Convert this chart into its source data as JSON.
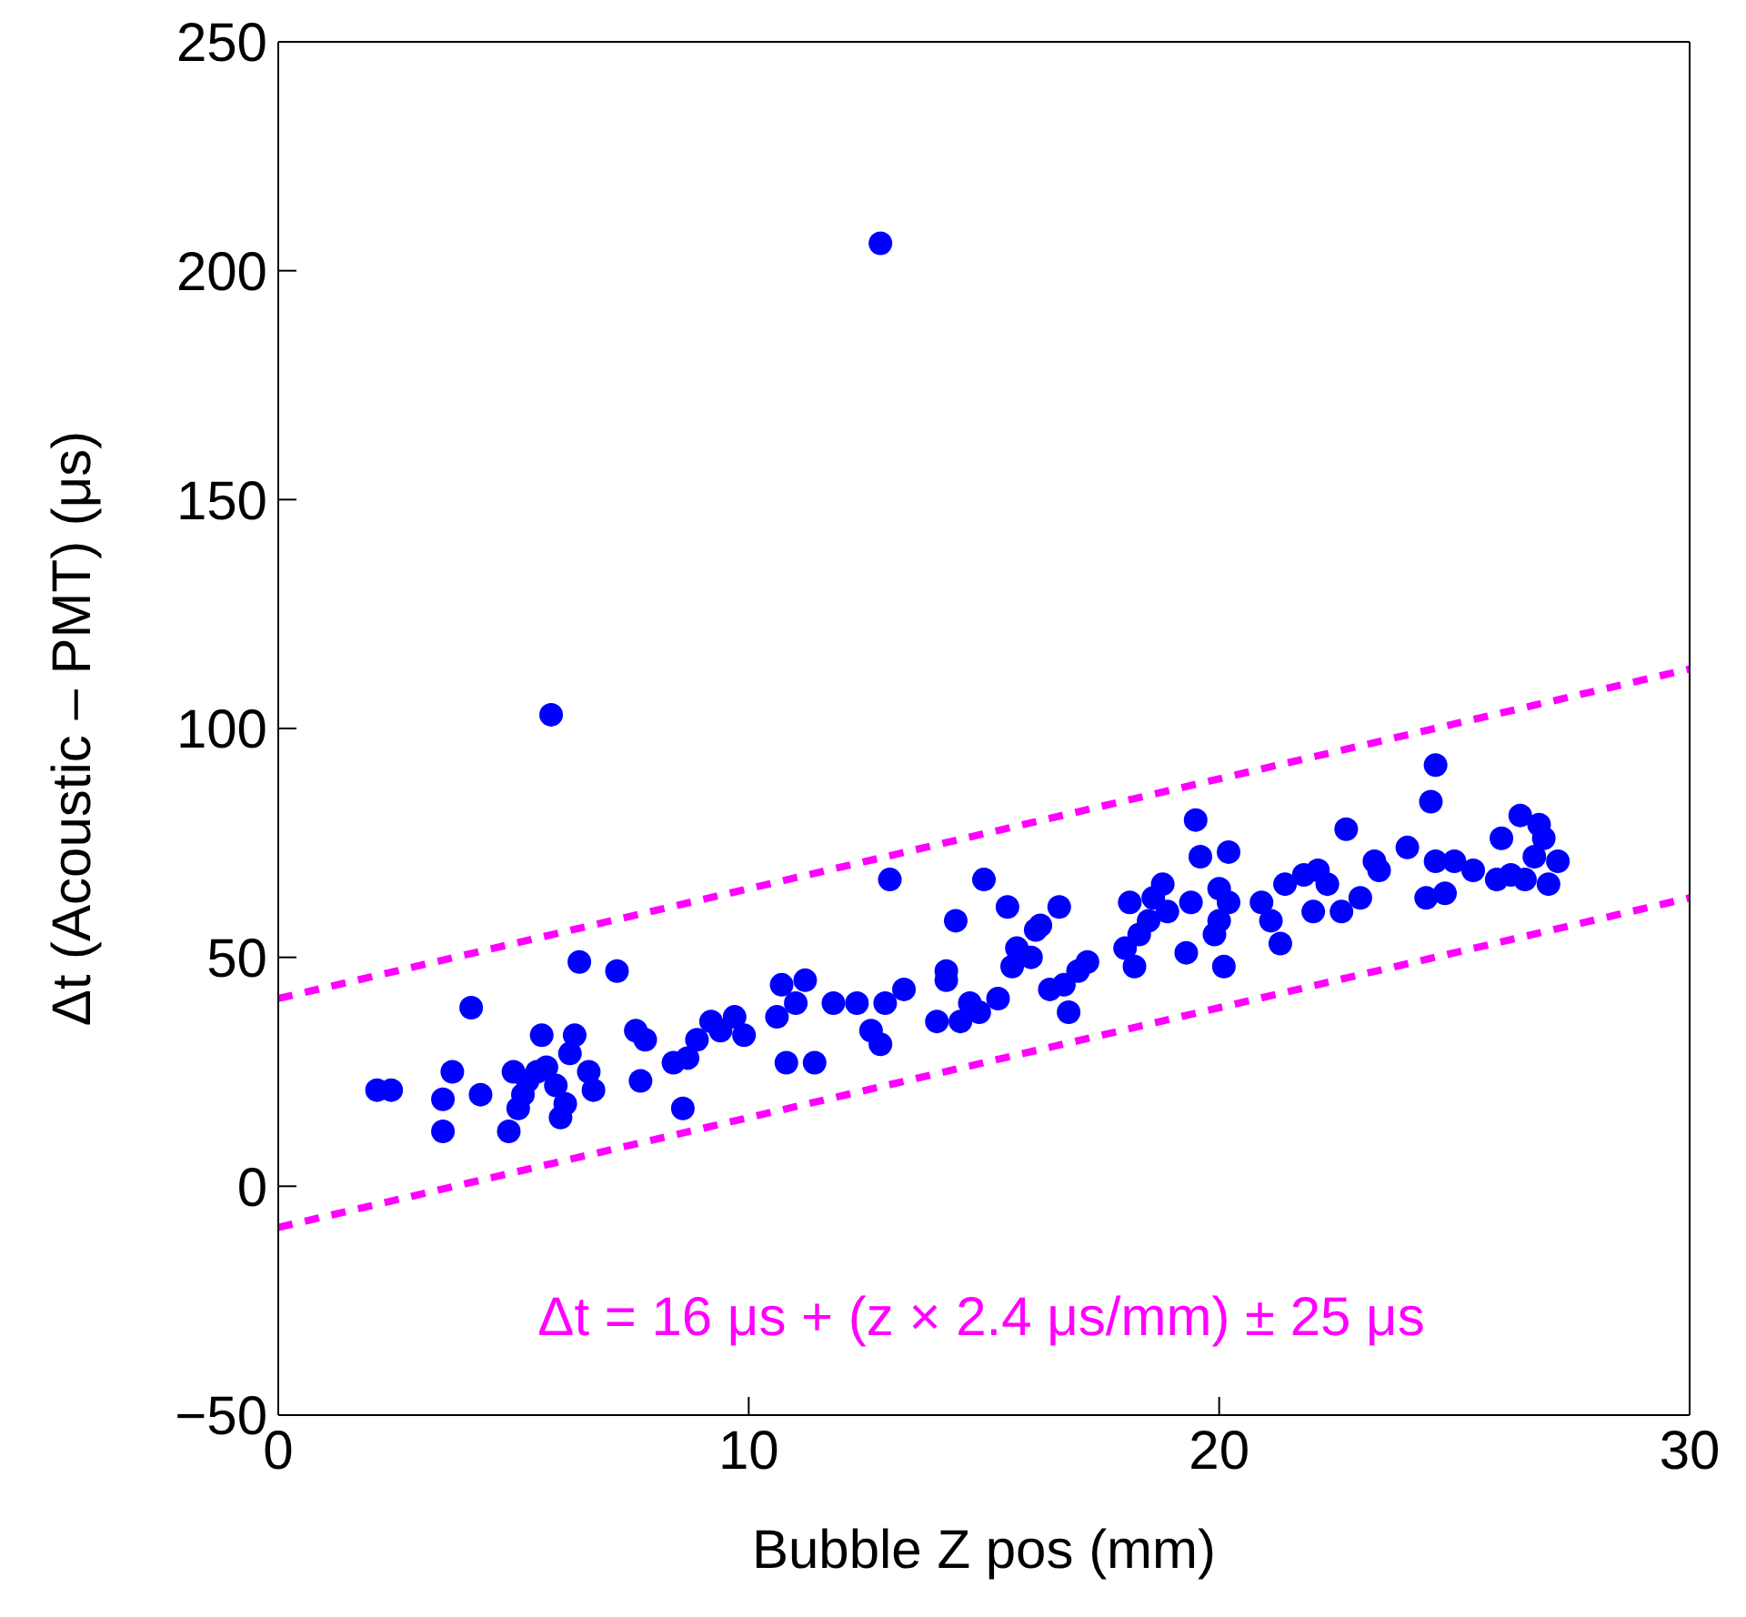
{
  "chart_data": {
    "type": "scatter",
    "xlabel": "Bubble Z pos (mm)",
    "ylabel": "Δt (Acoustic – PMT) (μs)",
    "xlim": [
      0,
      30
    ],
    "xticks": [
      0,
      10,
      20,
      30
    ],
    "ylim": [
      -50,
      250
    ],
    "yticks": [
      -50,
      0,
      50,
      100,
      150,
      200,
      250
    ],
    "marker": "circle",
    "annotations": [
      "Δt = 16 μs + (z × 2.4 μs/mm) ± 25 μs"
    ],
    "series": [
      {
        "color": "#0000ff",
        "x": [
          2.1,
          2.4,
          3.5,
          3.5,
          3.7,
          4.1,
          4.3,
          4.9,
          5.0,
          5.1,
          5.2,
          5.3,
          5.5,
          5.6,
          5.7,
          5.8,
          5.9,
          6.0,
          6.1,
          6.2,
          6.3,
          6.4,
          6.6,
          6.7,
          7.2,
          7.6,
          7.7,
          7.8,
          8.4,
          8.6,
          8.7,
          8.9,
          9.2,
          9.4,
          9.7,
          9.9,
          10.6,
          10.7,
          10.8,
          11.0,
          11.2,
          11.4,
          11.8,
          12.3,
          12.6,
          12.8,
          12.8,
          12.9,
          13.0,
          13.3,
          14.0,
          14.2,
          14.2,
          14.4,
          14.5,
          14.7,
          14.9,
          15.0,
          15.3,
          15.5,
          15.6,
          15.7,
          16.0,
          16.1,
          16.2,
          16.4,
          16.6,
          16.7,
          16.8,
          17.0,
          17.2,
          18.0,
          18.1,
          18.2,
          18.3,
          18.5,
          18.6,
          18.8,
          18.9,
          19.3,
          19.4,
          19.5,
          19.6,
          19.9,
          20.0,
          20.0,
          20.1,
          20.2,
          20.2,
          20.9,
          21.1,
          21.3,
          21.4,
          21.8,
          22.0,
          22.1,
          22.3,
          22.6,
          22.7,
          23.0,
          23.3,
          23.4,
          24.0,
          24.4,
          24.5,
          24.6,
          24.6,
          24.8,
          25.0,
          25.4,
          25.9,
          26.0,
          26.2,
          26.4,
          26.5,
          26.7,
          26.8,
          27.0,
          27.2,
          26.9
        ],
        "values": [
          21,
          21,
          12,
          19,
          25,
          39,
          20,
          12,
          25,
          17,
          20,
          23,
          25,
          33,
          26,
          103,
          22,
          15,
          18,
          29,
          33,
          49,
          25,
          21,
          47,
          34,
          23,
          32,
          27,
          17,
          28,
          32,
          36,
          34,
          37,
          33,
          37,
          44,
          27,
          40,
          45,
          27,
          40,
          40,
          34,
          206,
          31,
          40,
          67,
          43,
          36,
          47,
          45,
          58,
          36,
          40,
          38,
          67,
          41,
          61,
          48,
          52,
          50,
          56,
          57,
          43,
          61,
          44,
          38,
          47,
          49,
          52,
          62,
          48,
          55,
          58,
          63,
          66,
          60,
          51,
          62,
          80,
          72,
          55,
          65,
          58,
          48,
          62,
          73,
          62,
          58,
          53,
          66,
          68,
          60,
          69,
          66,
          60,
          78,
          63,
          71,
          69,
          74,
          63,
          84,
          92,
          71,
          64,
          71,
          69,
          67,
          76,
          68,
          81,
          67,
          72,
          79,
          66,
          71,
          76
        ]
      },
      {
        "type": "line",
        "color": "#ff00ff",
        "line_style": "dashed",
        "marker": "none",
        "x": [
          0,
          30
        ],
        "values": [
          41,
          113
        ]
      },
      {
        "type": "line",
        "color": "#ff00ff",
        "line_style": "dashed",
        "marker": "none",
        "x": [
          0,
          30
        ],
        "values": [
          -9,
          63
        ]
      }
    ]
  }
}
